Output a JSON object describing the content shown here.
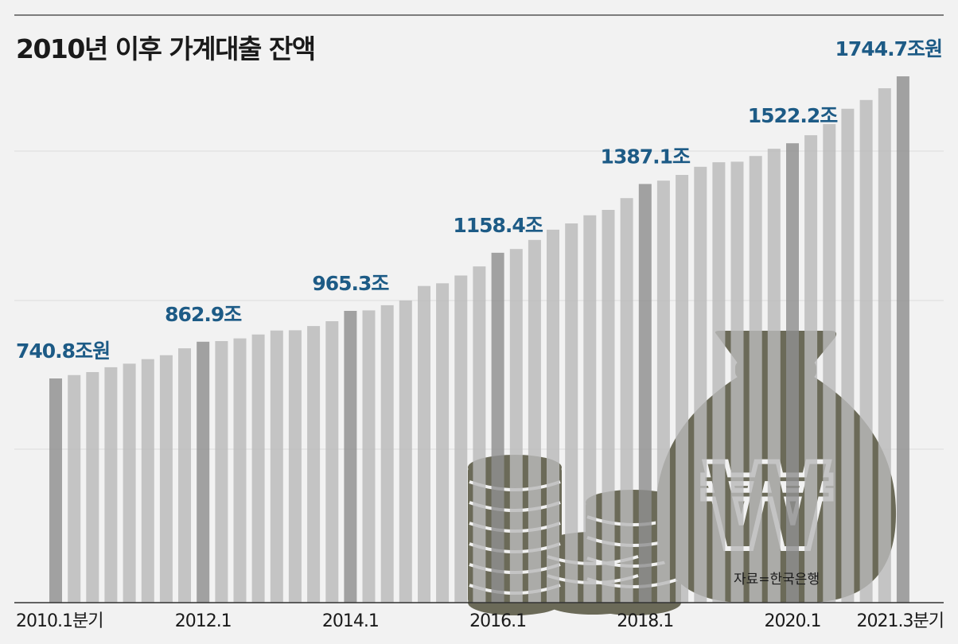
{
  "chart_data": {
    "type": "bar",
    "title": "2010년 이후 가계대출 잔액",
    "source": "자료=한국은행",
    "ylim": [
      0,
      1800
    ],
    "categories": [
      "2010.1",
      "2010.2",
      "2010.3",
      "2010.4",
      "2011.1",
      "2011.2",
      "2011.3",
      "2011.4",
      "2012.1",
      "2012.2",
      "2012.3",
      "2012.4",
      "2013.1",
      "2013.2",
      "2013.3",
      "2013.4",
      "2014.1",
      "2014.2",
      "2014.3",
      "2014.4",
      "2015.1",
      "2015.2",
      "2015.3",
      "2015.4",
      "2016.1",
      "2016.2",
      "2016.3",
      "2016.4",
      "2017.1",
      "2017.2",
      "2017.3",
      "2017.4",
      "2018.1",
      "2018.2",
      "2018.3",
      "2018.4",
      "2019.1",
      "2019.2",
      "2019.3",
      "2019.4",
      "2020.1",
      "2020.2",
      "2020.3",
      "2020.4",
      "2021.1",
      "2021.2",
      "2021.3"
    ],
    "values": [
      740.8,
      752,
      762,
      778,
      790,
      805,
      818,
      841,
      862.9,
      865,
      874,
      887,
      900,
      901,
      915,
      931,
      965.3,
      967,
      984,
      1000,
      1048,
      1057,
      1083,
      1113,
      1158.4,
      1171,
      1201,
      1235,
      1256,
      1283,
      1301,
      1340,
      1387.1,
      1398,
      1417,
      1444,
      1459,
      1461,
      1480,
      1504,
      1522.2,
      1549,
      1586,
      1637,
      1666,
      1705,
      1744.7
    ],
    "highlight_indices": [
      0,
      8,
      16,
      24,
      32,
      40,
      46
    ],
    "annotations": [
      {
        "index": 0,
        "text": "740.8조원"
      },
      {
        "index": 8,
        "text": "862.9조"
      },
      {
        "index": 16,
        "text": "965.3조"
      },
      {
        "index": 24,
        "text": "1158.4조"
      },
      {
        "index": 32,
        "text": "1387.1조"
      },
      {
        "index": 40,
        "text": "1522.2조"
      },
      {
        "index": 46,
        "text": "1744.7조원"
      }
    ],
    "tick_labels": [
      {
        "index": 0,
        "text": "2010.1분기"
      },
      {
        "index": 8,
        "text": "2012.1"
      },
      {
        "index": 16,
        "text": "2014.1"
      },
      {
        "index": 24,
        "text": "2016.1"
      },
      {
        "index": 32,
        "text": "2018.1"
      },
      {
        "index": 40,
        "text": "2020.1"
      },
      {
        "index": 46,
        "text": "2021.3분기"
      }
    ],
    "grid": true,
    "colors": {
      "bar": "#b9b9b9",
      "bar_highlight": "#8f8f8f",
      "annotation": "#1d5b86",
      "illustration": "#6b6a58",
      "background": "#f2f2f2"
    }
  },
  "illustration": {
    "money_bag_icon": "won-money-bag-icon",
    "coins_icon": "coin-stack-icon",
    "won_symbol": "₩"
  }
}
